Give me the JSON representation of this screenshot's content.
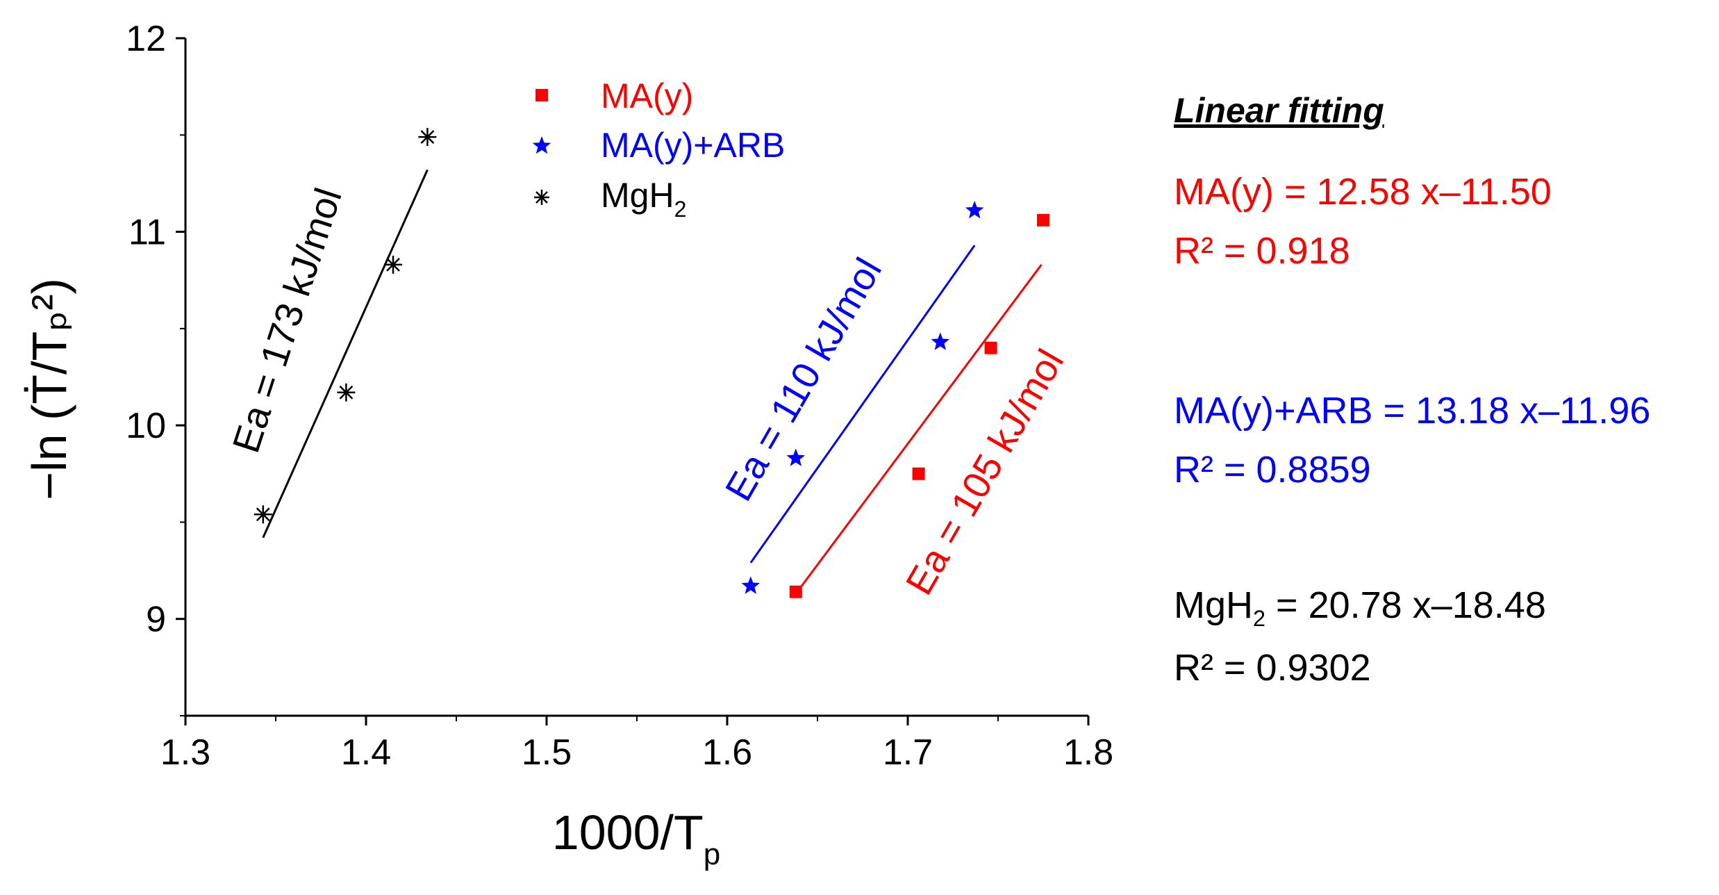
{
  "chart_data": {
    "type": "scatter",
    "title": "",
    "xlabel": "1000/T",
    "xlabel_sub": "p",
    "ylabel": "−ln (Ṫ/Tₚ²)",
    "xlim": [
      1.3,
      1.8
    ],
    "ylim": [
      8.5,
      12.0
    ],
    "x_ticks": [
      1.3,
      1.4,
      1.5,
      1.6,
      1.7,
      1.8
    ],
    "x_tick_labels": [
      "1.3",
      "1.4",
      "1.5",
      "1.6",
      "1.7",
      "1.8"
    ],
    "y_ticks": [
      9,
      10,
      11,
      12
    ],
    "y_tick_labels": [
      "9",
      "10",
      "11",
      "12"
    ],
    "grid": false,
    "legend_position": "top-center",
    "series": [
      {
        "name": "MA(y)",
        "color": "#ff0000",
        "marker": "square",
        "x": [
          1.638,
          1.706,
          1.746,
          1.775
        ],
        "y": [
          9.14,
          9.75,
          10.4,
          11.06
        ],
        "fit": {
          "x": [
            1.638,
            1.774
          ],
          "y": [
            9.13,
            10.83
          ]
        },
        "annotation": "Ea = 105 kJ/mol"
      },
      {
        "name": "MA(y)+ARB",
        "color": "#0000ff",
        "marker": "star",
        "x": [
          1.613,
          1.638,
          1.718,
          1.737
        ],
        "y": [
          9.17,
          9.83,
          10.43,
          11.11
        ],
        "fit": {
          "x": [
            1.613,
            1.737
          ],
          "y": [
            9.29,
            10.93
          ]
        },
        "annotation": "Ea = 110 kJ/mol"
      },
      {
        "name": "MgH2",
        "color": "#000000",
        "marker": "asterisk",
        "x": [
          1.343,
          1.389,
          1.415,
          1.434
        ],
        "y": [
          9.54,
          10.17,
          10.83,
          11.49
        ],
        "fit": {
          "x": [
            1.343,
            1.434
          ],
          "y": [
            9.42,
            11.32
          ]
        },
        "annotation": "Ea = 173 kJ/mol"
      }
    ]
  },
  "legend": {
    "ma_y": "MA(y)",
    "ma_y_arb": "MA(y)+ARB",
    "mgh2_main": "MgH",
    "mgh2_sub": "2"
  },
  "fit_panel": {
    "heading": "Linear fitting",
    "ma_y_eq": "MA(y) = 12.58  x–11.50",
    "ma_y_r2": "R² = 0.918",
    "arb_eq": "MA(y)+ARB = 13.18  x–11.96",
    "arb_r2": "R² = 0.8859",
    "mgh2_eq_prefix": "MgH",
    "mgh2_eq_sub": "2",
    "mgh2_eq_rest": " = 20.78  x–18.48",
    "mgh2_r2": "R² = 0.9302"
  },
  "colors": {
    "ma_y": "#ff0000",
    "ma_y_arb": "#0000ff",
    "mgh2": "#000000"
  }
}
